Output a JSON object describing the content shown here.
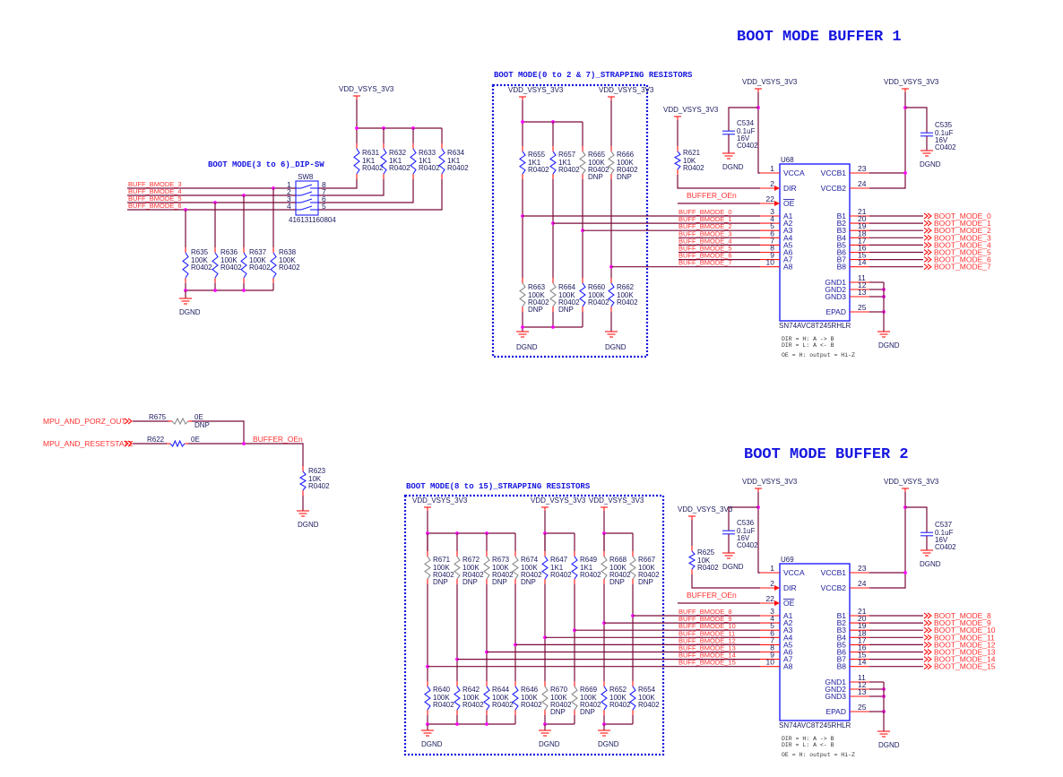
{
  "net": {
    "vdd": "VDD_VSYS_3V3",
    "gnd": "DGND",
    "oe": "BUFFER_OEn"
  },
  "dip": {
    "title": "BOOT MODE(3 to 6)_DIP-SW",
    "ref": "SW8",
    "part": "416131160804",
    "signals": [
      "BUFF_BMODE_3",
      "BUFF_BMODE_4",
      "BUFF_BMODE_5",
      "BUFF_BMODE_6"
    ],
    "pins_left": [
      "1",
      "2",
      "3",
      "4"
    ],
    "pins_right": [
      "8",
      "7",
      "6",
      "5"
    ],
    "pullups": [
      {
        "ref": "R631",
        "value": "1K1",
        "package": "R0402"
      },
      {
        "ref": "R632",
        "value": "1K1",
        "package": "R0402"
      },
      {
        "ref": "R633",
        "value": "1K1",
        "package": "R0402"
      },
      {
        "ref": "R634",
        "value": "1K1",
        "package": "R0402"
      }
    ],
    "pulldowns": [
      {
        "ref": "R635",
        "value": "100K",
        "package": "R0402"
      },
      {
        "ref": "R636",
        "value": "100K",
        "package": "R0402"
      },
      {
        "ref": "R637",
        "value": "100K",
        "package": "R0402"
      },
      {
        "ref": "R638",
        "value": "100K",
        "package": "R0402"
      }
    ]
  },
  "strap1": {
    "title": "BOOT MODE(0 to 2 & 7)_STRAPPING RESISTORS",
    "top": [
      {
        "ref": "R655",
        "value": "1K1",
        "package": "R0402"
      },
      {
        "ref": "R657",
        "value": "1K1",
        "package": "R0402"
      },
      {
        "ref": "R665",
        "value": "100K",
        "package": "R0402",
        "dnp": "DNP"
      },
      {
        "ref": "R666",
        "value": "100K",
        "package": "R0402",
        "dnp": "DNP"
      }
    ],
    "bottom": [
      {
        "ref": "R663",
        "value": "100K",
        "package": "R0402",
        "dnp": "DNP"
      },
      {
        "ref": "R664",
        "value": "100K",
        "package": "R0402",
        "dnp": "DNP"
      },
      {
        "ref": "R660",
        "value": "100K",
        "package": "R0402"
      },
      {
        "ref": "R662",
        "value": "100K",
        "package": "R0402"
      }
    ]
  },
  "strap2": {
    "title": "BOOT MODE(8 to 15)_STRAPPING RESISTORS",
    "top": [
      {
        "ref": "R671",
        "value": "100K",
        "package": "R0402",
        "dnp": "DNP"
      },
      {
        "ref": "R672",
        "value": "100K",
        "package": "R0402",
        "dnp": "DNP"
      },
      {
        "ref": "R673",
        "value": "100K",
        "package": "R0402",
        "dnp": "DNP"
      },
      {
        "ref": "R674",
        "value": "100K",
        "package": "R0402",
        "dnp": "DNP"
      },
      {
        "ref": "R647",
        "value": "1K1",
        "package": "R0402"
      },
      {
        "ref": "R649",
        "value": "1K1",
        "package": "R0402"
      },
      {
        "ref": "R668",
        "value": "100K",
        "package": "R0402",
        "dnp": "DNP"
      },
      {
        "ref": "R667",
        "value": "100K",
        "package": "R0402",
        "dnp": "DNP"
      }
    ],
    "bottom": [
      {
        "ref": "R640",
        "value": "100K",
        "package": "R0402"
      },
      {
        "ref": "R642",
        "value": "100K",
        "package": "R0402"
      },
      {
        "ref": "R644",
        "value": "100K",
        "package": "R0402"
      },
      {
        "ref": "R646",
        "value": "100K",
        "package": "R0402"
      },
      {
        "ref": "R670",
        "value": "100K",
        "package": "R0402",
        "dnp": "DNP"
      },
      {
        "ref": "R669",
        "value": "100K",
        "package": "R0402",
        "dnp": "DNP"
      },
      {
        "ref": "R652",
        "value": "100K",
        "package": "R0402"
      },
      {
        "ref": "R654",
        "value": "100K",
        "package": "R0402"
      }
    ]
  },
  "oe_circuit": {
    "inputs": [
      {
        "net": "MPU_AND_PORZ_OUT",
        "ref": "R675",
        "value": "0E",
        "dnp": "DNP"
      },
      {
        "net": "MPU_AND_RESETSTATZ",
        "ref": "R622",
        "value": "0E"
      }
    ],
    "pulldown": {
      "ref": "R623",
      "value": "10K",
      "package": "R0402"
    }
  },
  "ic_pins": {
    "left": [
      {
        "name": "VCCA",
        "num": "1"
      },
      {
        "name": "DIR",
        "num": "2"
      },
      {
        "name": "OE",
        "num": "22"
      },
      {
        "name": "A1",
        "num": "3"
      },
      {
        "name": "A2",
        "num": "4"
      },
      {
        "name": "A3",
        "num": "5"
      },
      {
        "name": "A4",
        "num": "6"
      },
      {
        "name": "A5",
        "num": "7"
      },
      {
        "name": "A6",
        "num": "8"
      },
      {
        "name": "A7",
        "num": "9"
      },
      {
        "name": "A8",
        "num": "10"
      }
    ],
    "right": [
      {
        "name": "VCCB1",
        "num": "23"
      },
      {
        "name": "VCCB2",
        "num": "24"
      },
      {
        "name": "B1",
        "num": "21"
      },
      {
        "name": "B2",
        "num": "20"
      },
      {
        "name": "B3",
        "num": "19"
      },
      {
        "name": "B4",
        "num": "18"
      },
      {
        "name": "B5",
        "num": "17"
      },
      {
        "name": "B6",
        "num": "16"
      },
      {
        "name": "B7",
        "num": "15"
      },
      {
        "name": "B8",
        "num": "14"
      }
    ],
    "gnd": [
      {
        "name": "GND1",
        "num": "11"
      },
      {
        "name": "GND2",
        "num": "12"
      },
      {
        "name": "GND3",
        "num": "13"
      },
      {
        "name": "EPAD",
        "num": "25"
      }
    ]
  },
  "notes": [
    "DIR = H: A -> B",
    "DIR = L: A <- B",
    "OE = H: output = Hi-Z"
  ],
  "buffer1": {
    "title": "BOOT MODE BUFFER 1",
    "ic": {
      "ref": "U68",
      "part": "SN74AVC8T245RHLR"
    },
    "dir_resistor": {
      "ref": "R621",
      "value": "10K",
      "package": "R0402"
    },
    "caps": [
      {
        "ref": "C534",
        "value": "0.1uF",
        "voltage": "16V",
        "package": "C0402"
      },
      {
        "ref": "C535",
        "value": "0.1uF",
        "voltage": "16V",
        "package": "C0402"
      }
    ],
    "inputs": [
      "BUFF_BMODE_0",
      "BUFF_BMODE_1",
      "BUFF_BMODE_2",
      "BUFF_BMODE_3",
      "BUFF_BMODE_4",
      "BUFF_BMODE_5",
      "BUFF_BMODE_6",
      "BUFF_BMODE_7"
    ],
    "outputs": [
      "BOOT_MODE_0",
      "BOOT_MODE_1",
      "BOOT_MODE_2",
      "BOOT_MODE_3",
      "BOOT_MODE_4",
      "BOOT_MODE_5",
      "BOOT_MODE_6",
      "BOOT_MODE_7"
    ]
  },
  "buffer2": {
    "title": "BOOT MODE BUFFER 2",
    "ic": {
      "ref": "U69",
      "part": "SN74AVC8T245RHLR"
    },
    "dir_resistor": {
      "ref": "R625",
      "value": "10K",
      "package": "R0402"
    },
    "caps": [
      {
        "ref": "C536",
        "value": "0.1uF",
        "voltage": "16V",
        "package": "C0402"
      },
      {
        "ref": "C537",
        "value": "0.1uF",
        "voltage": "16V",
        "package": "C0402"
      }
    ],
    "inputs": [
      "BUFF_BMODE_8",
      "BUFF_BMODE_9",
      "BUFF_BMODE_10",
      "BUFF_BMODE_11",
      "BUFF_BMODE_12",
      "BUFF_BMODE_13",
      "BUFF_BMODE_14",
      "BUFF_BMODE_15"
    ],
    "outputs": [
      "BOOT_MODE_8",
      "BOOT_MODE_9",
      "BOOT_MODE_10",
      "BOOT_MODE_11",
      "BOOT_MODE_12",
      "BOOT_MODE_13",
      "BOOT_MODE_14",
      "BOOT_MODE_15"
    ]
  },
  "colors": {
    "wire": "#7a0a3a",
    "component": "#2020ff",
    "dnp_component": "#8a8a8a",
    "net_label": "#ff3030",
    "junction": "#ff00ff",
    "title": "#1515e0"
  }
}
